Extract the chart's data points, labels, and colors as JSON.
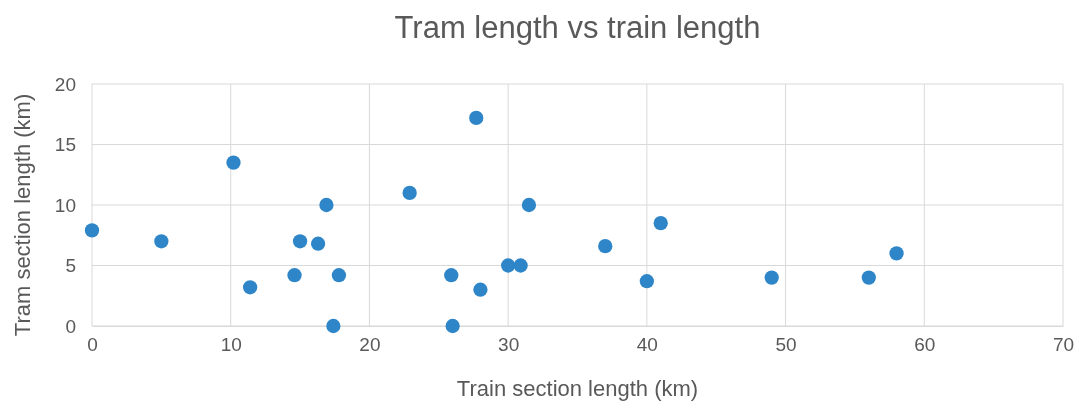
{
  "chart_data": {
    "type": "scatter",
    "title": "Tram length vs train length",
    "xlabel": "Train section length (km)",
    "ylabel": "Tram section length (km)",
    "x": [
      0,
      5,
      10.2,
      11.4,
      14.6,
      15,
      16.3,
      16.9,
      17.4,
      17.8,
      22.9,
      25.9,
      26,
      27.7,
      28,
      30,
      30.9,
      31.5,
      37,
      41,
      40,
      49,
      56,
      58
    ],
    "series": [
      {
        "color": "#2e86c8",
        "values": [
          7.9,
          7,
          13.5,
          3.2,
          4.2,
          7,
          6.8,
          10,
          0,
          4.2,
          11,
          4.2,
          0,
          17.2,
          3,
          5,
          5,
          10,
          6.6,
          8.5,
          3.7,
          4,
          4,
          6
        ]
      }
    ],
    "xlim": [
      0,
      70
    ],
    "xticks": [
      0,
      10,
      20,
      30,
      40,
      50,
      60,
      70
    ],
    "ylim": [
      0,
      20
    ],
    "yticks": [
      0,
      5,
      10,
      15,
      20
    ],
    "grid": true,
    "marker": "circle"
  }
}
